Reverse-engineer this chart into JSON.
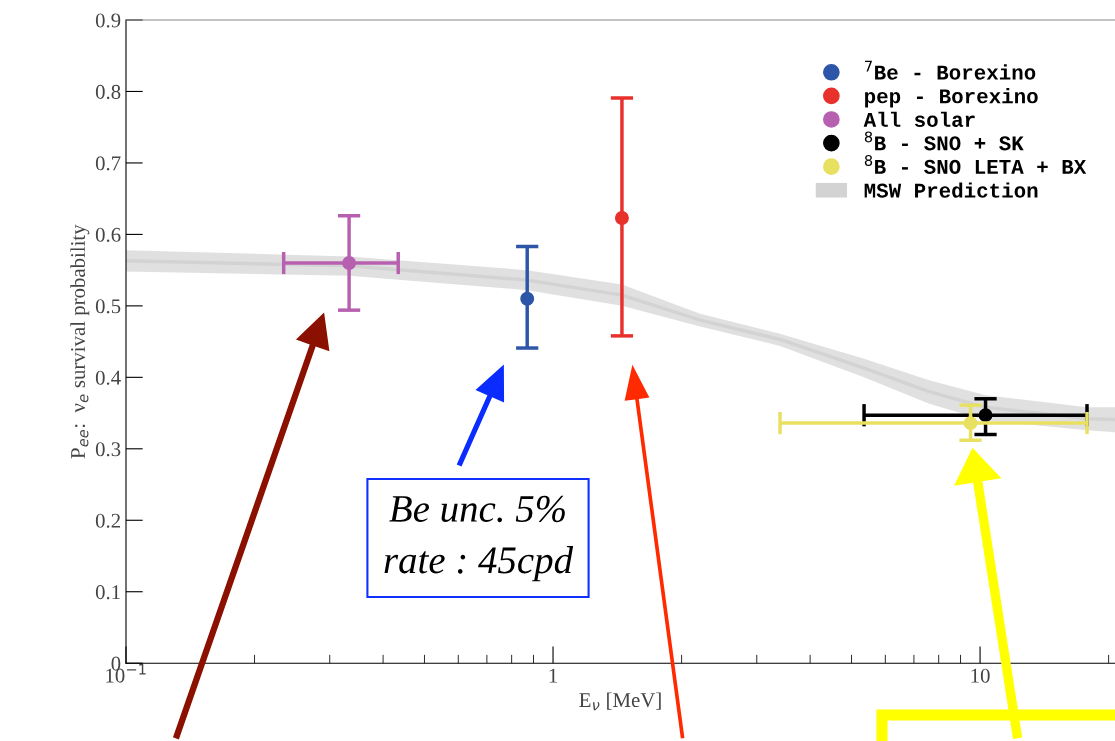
{
  "chart_data": {
    "type": "scatter",
    "xlabel": "E$_{ν}$ [MeV]",
    "ylabel": "P$_{ee}$:  ν$_{e}$ survival probability",
    "log": "x",
    "xlim": [
      0.1,
      20.7
    ],
    "ylim": [
      0,
      0.9
    ],
    "xticks": [
      {
        "value": 0.1,
        "label": "10$^{−1}$"
      },
      1,
      10
    ],
    "yticks": [
      0,
      0.1,
      0.2,
      0.3,
      0.4,
      0.5,
      0.6,
      0.7,
      0.8,
      0.9
    ],
    "grid": false,
    "legend": "top right",
    "marker": "circle",
    "series": [
      {
        "name": "$^{7}$Be - Borexino",
        "color": "#2d55a8",
        "x": [
          0.87
        ],
        "values": [
          0.51
        ],
        "errors": [
          [
            0.441,
            0.583
          ]
        ]
      },
      {
        "name": "pep - Borexino",
        "color": "#e8312b",
        "x": [
          1.45
        ],
        "values": [
          0.623
        ],
        "errors": [
          [
            0.458,
            0.791
          ]
        ]
      },
      {
        "name": "All solar",
        "color": "#b860b0",
        "x": [
          0.333
        ],
        "values": [
          0.56
        ],
        "errors": [
          [
            0.494,
            0.626
          ]
        ],
        "xerrors": [
          [
            0.234,
            0.434
          ]
        ]
      },
      {
        "name": "$^{8}$B - SNO + SK",
        "color": "#000000",
        "x": [
          10.3
        ],
        "values": [
          0.347
        ],
        "errors": [
          [
            0.32,
            0.37
          ]
        ],
        "xerrors": [
          [
            5.35,
            17.8
          ]
        ]
      },
      {
        "name": "$^{8}$B - SNO LETA + BX",
        "color": "#e8e060",
        "x": [
          9.5
        ],
        "values": [
          0.336
        ],
        "errors": [
          [
            0.312,
            0.361
          ]
        ],
        "xerrors": [
          [
            3.4,
            17.8
          ]
        ]
      },
      {
        "name": "MSW Prediction",
        "type": "line",
        "marker": "none",
        "color": "#d3d3d3",
        "x": [
          0.1,
          0.333,
          0.87,
          1.45,
          2.21,
          3.4,
          5.35,
          7.6,
          10.3,
          17.8,
          20.7
        ],
        "values": [
          0.563,
          0.556,
          0.536,
          0.515,
          0.48,
          0.453,
          0.413,
          0.38,
          0.358,
          0.342,
          0.341
        ],
        "lower": [
          0.548,
          0.542,
          0.522,
          0.5,
          0.471,
          0.444,
          0.4,
          0.363,
          0.34,
          0.326,
          0.323
        ],
        "upper": [
          0.578,
          0.569,
          0.55,
          0.53,
          0.489,
          0.461,
          0.426,
          0.396,
          0.375,
          0.358,
          0.358
        ]
      }
    ],
    "annotations": [
      "Be unc. 5%\nrate : 45cpd"
    ]
  }
}
